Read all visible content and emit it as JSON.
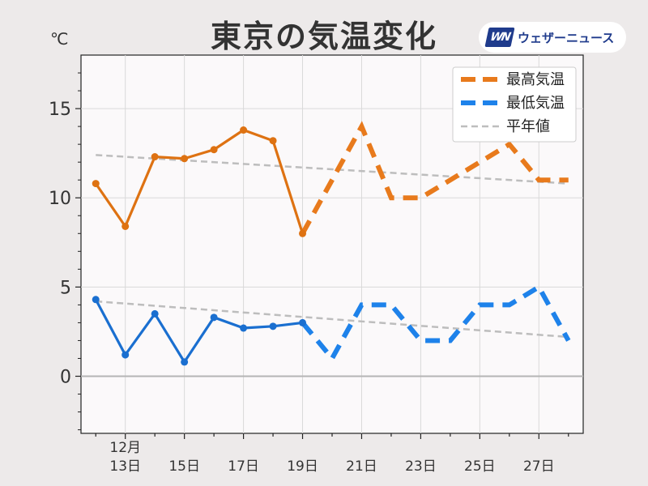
{
  "header": {
    "title": "東京の気温変化",
    "unit": "℃",
    "logo_mark": "WN",
    "logo_text": "ウェザーニュース"
  },
  "colors": {
    "high": "#e87a1c",
    "high_solid": "#de7212",
    "low": "#1e82ea",
    "low_solid": "#1a6fd0",
    "normal": "#bdbdbd"
  },
  "chart_data": {
    "type": "line",
    "title": "東京の気温変化",
    "ylabel": "℃",
    "ylim": [
      -3.2,
      18
    ],
    "yticks": [
      0,
      5,
      10,
      15
    ],
    "xlim": [
      11.5,
      28.5
    ],
    "x_tick_days": [
      13,
      15,
      17,
      19,
      21,
      23,
      25,
      27
    ],
    "x_tick_labels": [
      "13日",
      "15日",
      "17日",
      "19日",
      "21日",
      "23日",
      "25日",
      "27日"
    ],
    "month_label": "12月",
    "grid": true,
    "legend_position": "top-right",
    "series": [
      {
        "name": "最高気温",
        "observed": {
          "x": [
            12,
            13,
            14,
            15,
            16,
            17,
            18,
            19
          ],
          "y": [
            10.8,
            8.4,
            12.3,
            12.2,
            12.7,
            13.8,
            13.2,
            8.0
          ]
        },
        "forecast": {
          "x": [
            19,
            21,
            22,
            23,
            26,
            27,
            28
          ],
          "y": [
            8.0,
            14.0,
            10.0,
            10.0,
            13.0,
            11.0,
            11.0
          ]
        }
      },
      {
        "name": "最低気温",
        "observed": {
          "x": [
            12,
            13,
            14,
            15,
            16,
            17,
            18,
            19
          ],
          "y": [
            4.3,
            1.2,
            3.5,
            0.8,
            3.3,
            2.7,
            2.8,
            3.0
          ]
        },
        "forecast": {
          "x": [
            19,
            20,
            21,
            22,
            23,
            24,
            25,
            26,
            27,
            28
          ],
          "y": [
            3.0,
            1.0,
            4.0,
            4.0,
            2.0,
            2.0,
            4.0,
            4.0,
            5.0,
            2.0
          ]
        }
      },
      {
        "name": "平年値",
        "high": {
          "x": [
            12,
            28
          ],
          "y": [
            12.4,
            10.8
          ]
        },
        "low": {
          "x": [
            12,
            28
          ],
          "y": [
            4.2,
            2.2
          ]
        }
      }
    ]
  }
}
